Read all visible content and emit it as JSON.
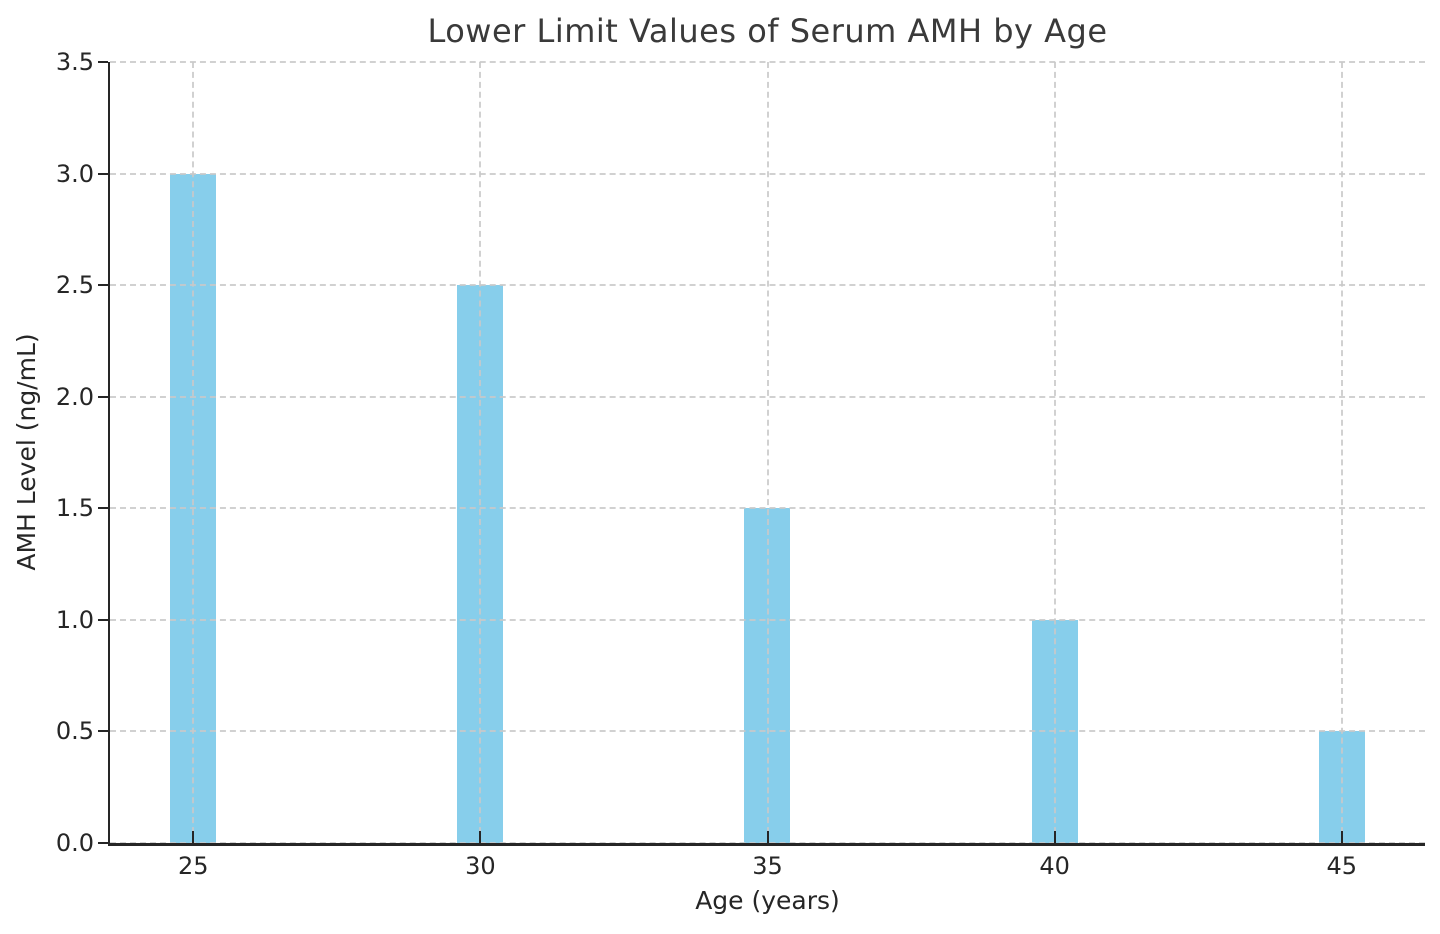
{
  "chart_data": {
    "type": "bar",
    "title": "Lower Limit Values of Serum AMH by Age",
    "xlabel": "Age (years)",
    "ylabel": "AMH Level (ng/mL)",
    "categories": [
      25,
      30,
      35,
      40,
      45
    ],
    "values": [
      3.0,
      2.5,
      1.5,
      1.0,
      0.5
    ],
    "xticks": [
      25,
      30,
      35,
      40,
      45
    ],
    "xtick_labels": [
      "25",
      "30",
      "35",
      "40",
      "45"
    ],
    "yticks": [
      0.0,
      0.5,
      1.0,
      1.5,
      2.0,
      2.5,
      3.0,
      3.5
    ],
    "ytick_labels": [
      "0.0",
      "0.5",
      "1.0",
      "1.5",
      "2.0",
      "2.5",
      "3.0",
      "3.5"
    ],
    "xlim": [
      23.55,
      46.45
    ],
    "ylim": [
      0,
      3.5
    ],
    "bar_width_x_units": 0.8,
    "bar_color": "#87CEEB",
    "grid": true,
    "grid_color": "#c9c9c9",
    "grid_style": "dashed",
    "axis_color": "#262626",
    "title_color": "#3a3a3a",
    "legend": "none"
  }
}
